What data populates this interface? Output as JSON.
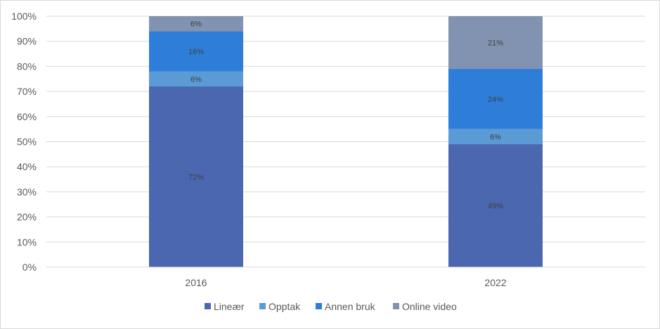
{
  "chart_data": {
    "type": "bar",
    "stacked": true,
    "percent_stacked": true,
    "categories": [
      "2016",
      "2022"
    ],
    "series": [
      {
        "name": "Lineær",
        "values": [
          72,
          49
        ],
        "labels": [
          "72%",
          "49%"
        ],
        "color": "#4A67B0"
      },
      {
        "name": "Opptak",
        "values": [
          6,
          6
        ],
        "labels": [
          "6%",
          "6%"
        ],
        "color": "#5B9BD5"
      },
      {
        "name": "Annen bruk",
        "values": [
          16,
          24
        ],
        "labels": [
          "16%",
          "24%"
        ],
        "color": "#2E7ED9"
      },
      {
        "name": "Online video",
        "values": [
          6,
          21
        ],
        "labels": [
          "6%",
          "21%"
        ],
        "color": "#8193B0"
      }
    ],
    "ylim": [
      0,
      100
    ],
    "yticks": [
      "0%",
      "10%",
      "20%",
      "30%",
      "40%",
      "50%",
      "60%",
      "70%",
      "80%",
      "90%",
      "100%"
    ],
    "grid": true,
    "legend_position": "bottom"
  }
}
